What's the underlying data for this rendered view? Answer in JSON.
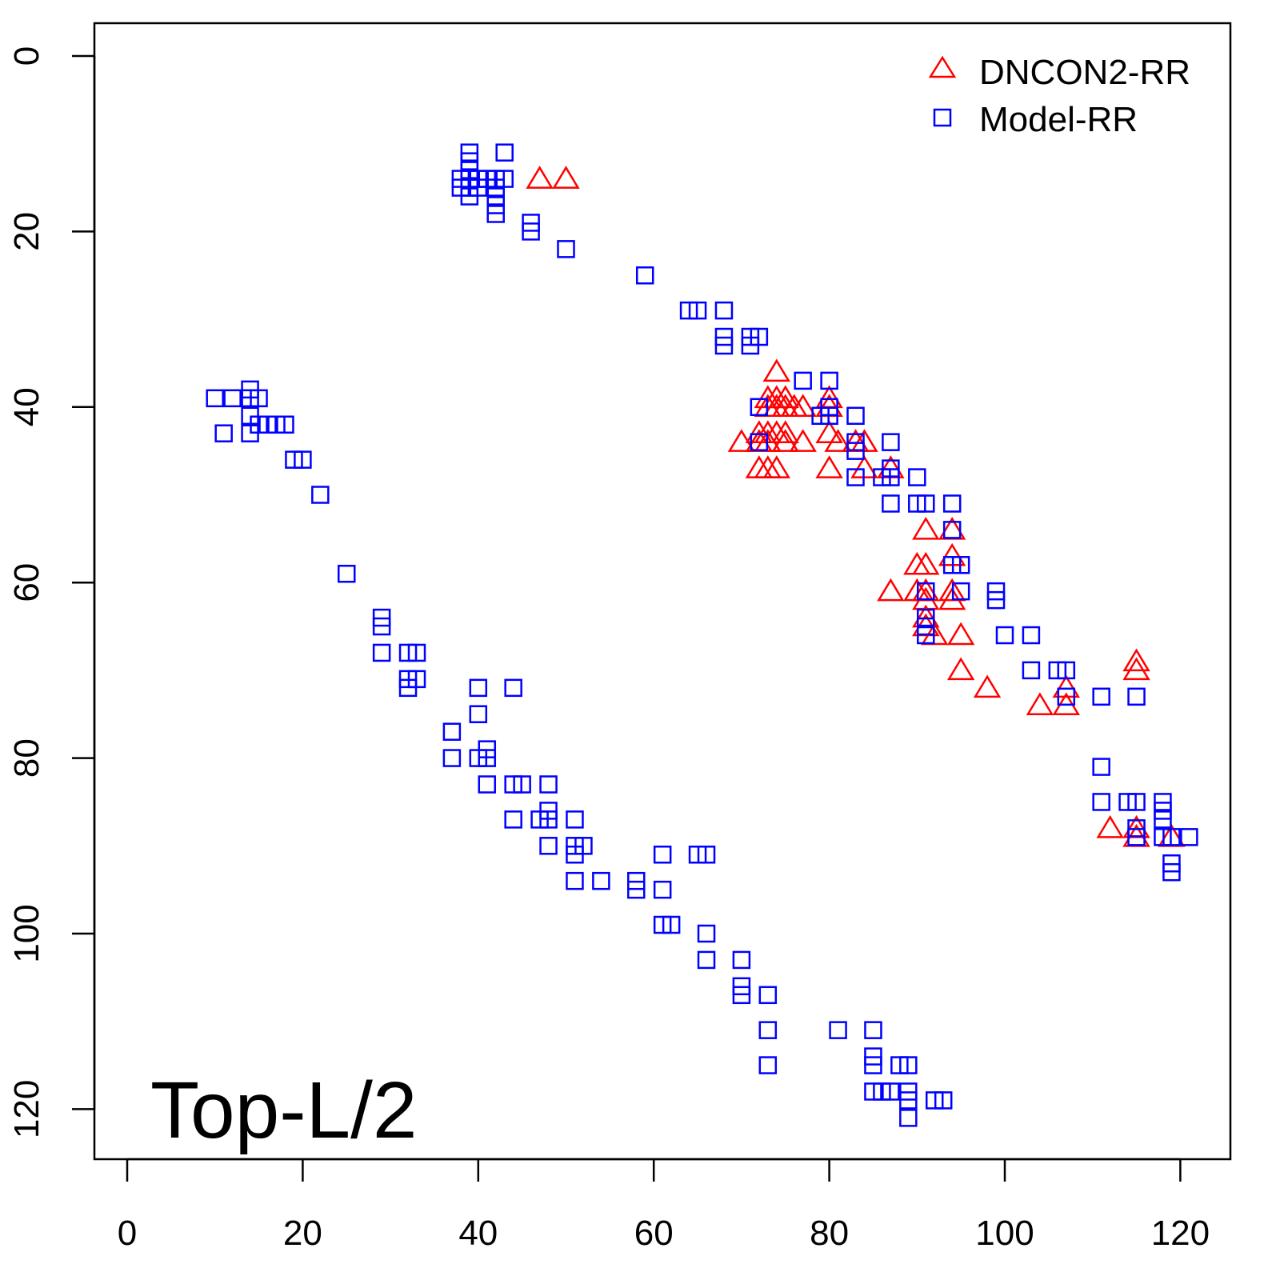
{
  "chart_data": {
    "type": "scatter",
    "title": "",
    "annotation": "Top-L/2",
    "xlabel": "",
    "ylabel": "",
    "xlim": [
      -2,
      127
    ],
    "ylim": [
      126,
      -4
    ],
    "y_inverted": true,
    "x_ticks": [
      0,
      20,
      40,
      60,
      80,
      100,
      120
    ],
    "y_ticks": [
      0,
      20,
      40,
      60,
      80,
      100,
      120
    ],
    "grid": false,
    "legend_position": "top-right",
    "series": [
      {
        "name": "DNCON2-RR",
        "marker": "triangle",
        "color": "#ff0000",
        "points": [
          [
            47,
            14
          ],
          [
            50,
            14
          ],
          [
            74,
            36
          ],
          [
            73,
            39
          ],
          [
            74,
            39
          ],
          [
            75,
            39
          ],
          [
            73,
            40
          ],
          [
            74,
            40
          ],
          [
            75,
            40
          ],
          [
            76,
            40
          ],
          [
            77,
            40
          ],
          [
            80,
            39
          ],
          [
            80,
            40
          ],
          [
            70,
            44
          ],
          [
            72,
            43
          ],
          [
            73,
            43
          ],
          [
            74,
            43
          ],
          [
            75,
            43
          ],
          [
            72,
            44
          ],
          [
            73,
            44
          ],
          [
            75,
            44
          ],
          [
            77,
            44
          ],
          [
            80,
            43
          ],
          [
            81,
            44
          ],
          [
            83,
            44
          ],
          [
            84,
            44
          ],
          [
            72,
            47
          ],
          [
            73,
            47
          ],
          [
            74,
            47
          ],
          [
            80,
            47
          ],
          [
            84,
            47
          ],
          [
            87,
            47
          ],
          [
            91,
            54
          ],
          [
            94,
            54
          ],
          [
            94,
            57
          ],
          [
            90,
            58
          ],
          [
            91,
            58
          ],
          [
            87,
            61
          ],
          [
            90,
            61
          ],
          [
            91,
            61
          ],
          [
            94,
            61
          ],
          [
            91,
            62
          ],
          [
            94,
            62
          ],
          [
            91,
            64
          ],
          [
            91,
            65
          ],
          [
            92,
            66
          ],
          [
            95,
            66
          ],
          [
            95,
            70
          ],
          [
            98,
            72
          ],
          [
            104,
            74
          ],
          [
            107,
            72
          ],
          [
            107,
            74
          ],
          [
            115,
            69
          ],
          [
            115,
            70
          ],
          [
            112,
            88
          ],
          [
            115,
            88
          ],
          [
            115,
            89
          ],
          [
            119,
            89
          ]
        ]
      },
      {
        "name": "Model-RR",
        "marker": "square",
        "color": "#0000ff",
        "points": [
          [
            39,
            11
          ],
          [
            39,
            12
          ],
          [
            39,
            13
          ],
          [
            39,
            14
          ],
          [
            39,
            15
          ],
          [
            39,
            16
          ],
          [
            38,
            14
          ],
          [
            40,
            14
          ],
          [
            41,
            14
          ],
          [
            42,
            14
          ],
          [
            43,
            14
          ],
          [
            38,
            15
          ],
          [
            40,
            15
          ],
          [
            42,
            15
          ],
          [
            42,
            16
          ],
          [
            42,
            17
          ],
          [
            42,
            18
          ],
          [
            43,
            11
          ],
          [
            46,
            19
          ],
          [
            46,
            20
          ],
          [
            50,
            22
          ],
          [
            59,
            25
          ],
          [
            64,
            29
          ],
          [
            65,
            29
          ],
          [
            68,
            29
          ],
          [
            68,
            32
          ],
          [
            68,
            33
          ],
          [
            71,
            32
          ],
          [
            72,
            32
          ],
          [
            71,
            33
          ],
          [
            77,
            37
          ],
          [
            80,
            37
          ],
          [
            72,
            40
          ],
          [
            72,
            44
          ],
          [
            79,
            41
          ],
          [
            80,
            40
          ],
          [
            80,
            41
          ],
          [
            83,
            41
          ],
          [
            83,
            44
          ],
          [
            83,
            45
          ],
          [
            83,
            48
          ],
          [
            86,
            48
          ],
          [
            87,
            44
          ],
          [
            87,
            47
          ],
          [
            87,
            48
          ],
          [
            87,
            51
          ],
          [
            90,
            48
          ],
          [
            90,
            51
          ],
          [
            91,
            51
          ],
          [
            94,
            51
          ],
          [
            94,
            54
          ],
          [
            94,
            58
          ],
          [
            95,
            58
          ],
          [
            95,
            61
          ],
          [
            91,
            61
          ],
          [
            91,
            64
          ],
          [
            91,
            65
          ],
          [
            91,
            66
          ],
          [
            99,
            61
          ],
          [
            99,
            62
          ],
          [
            100,
            66
          ],
          [
            103,
            66
          ],
          [
            103,
            70
          ],
          [
            106,
            70
          ],
          [
            107,
            70
          ],
          [
            107,
            73
          ],
          [
            111,
            73
          ],
          [
            115,
            73
          ],
          [
            111,
            81
          ],
          [
            111,
            85
          ],
          [
            114,
            85
          ],
          [
            115,
            85
          ],
          [
            118,
            85
          ],
          [
            118,
            86
          ],
          [
            118,
            87
          ],
          [
            115,
            88
          ],
          [
            115,
            89
          ],
          [
            118,
            89
          ],
          [
            121,
            89
          ],
          [
            119,
            92
          ],
          [
            119,
            93
          ],
          [
            119,
            89
          ],
          [
            10,
            39
          ],
          [
            12,
            39
          ],
          [
            14,
            38
          ],
          [
            14,
            39
          ],
          [
            15,
            39
          ],
          [
            14,
            41
          ],
          [
            15,
            42
          ],
          [
            16,
            42
          ],
          [
            17,
            42
          ],
          [
            18,
            42
          ],
          [
            11,
            43
          ],
          [
            14,
            43
          ],
          [
            19,
            46
          ],
          [
            20,
            46
          ],
          [
            22,
            50
          ],
          [
            25,
            59
          ],
          [
            29,
            64
          ],
          [
            29,
            65
          ],
          [
            29,
            68
          ],
          [
            32,
            68
          ],
          [
            33,
            68
          ],
          [
            32,
            71
          ],
          [
            33,
            71
          ],
          [
            32,
            72
          ],
          [
            40,
            72
          ],
          [
            44,
            72
          ],
          [
            40,
            75
          ],
          [
            37,
            77
          ],
          [
            37,
            80
          ],
          [
            40,
            80
          ],
          [
            41,
            79
          ],
          [
            41,
            80
          ],
          [
            41,
            83
          ],
          [
            44,
            83
          ],
          [
            45,
            83
          ],
          [
            48,
            83
          ],
          [
            44,
            87
          ],
          [
            47,
            87
          ],
          [
            48,
            86
          ],
          [
            48,
            87
          ],
          [
            48,
            90
          ],
          [
            51,
            87
          ],
          [
            51,
            90
          ],
          [
            52,
            90
          ],
          [
            51,
            91
          ],
          [
            51,
            94
          ],
          [
            54,
            94
          ],
          [
            58,
            94
          ],
          [
            58,
            95
          ],
          [
            61,
            91
          ],
          [
            61,
            95
          ],
          [
            61,
            99
          ],
          [
            62,
            99
          ],
          [
            65,
            91
          ],
          [
            66,
            91
          ],
          [
            66,
            100
          ],
          [
            66,
            103
          ],
          [
            70,
            103
          ],
          [
            70,
            106
          ],
          [
            70,
            107
          ],
          [
            73,
            107
          ],
          [
            73,
            111
          ],
          [
            73,
            115
          ],
          [
            81,
            111
          ],
          [
            85,
            111
          ],
          [
            85,
            114
          ],
          [
            85,
            115
          ],
          [
            85,
            118
          ],
          [
            86,
            118
          ],
          [
            87,
            118
          ],
          [
            88,
            115
          ],
          [
            89,
            115
          ],
          [
            89,
            118
          ],
          [
            89,
            119
          ],
          [
            89,
            121
          ],
          [
            92,
            119
          ],
          [
            93,
            119
          ]
        ]
      }
    ]
  }
}
